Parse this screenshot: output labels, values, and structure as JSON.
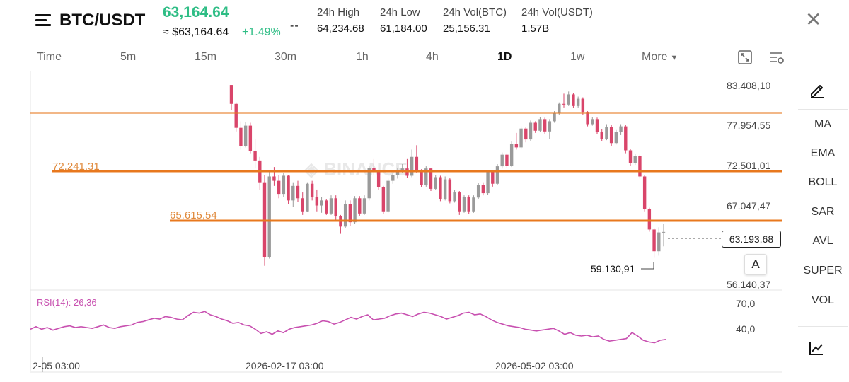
{
  "header": {
    "pair": "BTC/USDT",
    "last_price": "63,164.64",
    "approx_price": "≈ $63,164.64",
    "change_pct": "+1.49%",
    "dashes": "--",
    "stats": [
      {
        "label": "24h High",
        "value": "64,234.68"
      },
      {
        "label": "24h Low",
        "value": "61,184.00"
      },
      {
        "label": "24h Vol(BTC)",
        "value": "25,156.31"
      },
      {
        "label": "24h Vol(USDT)",
        "value": "1.57B"
      }
    ],
    "close_icon": "close-icon"
  },
  "timeframes": {
    "items": [
      "Time",
      "5m",
      "15m",
      "30m",
      "1h",
      "4h",
      "1D",
      "1w"
    ],
    "active": "1D",
    "more_label": "More"
  },
  "toolbar": {
    "expand_icon": "expand-chart-icon",
    "settings_icon": "chart-settings-icon"
  },
  "sidebar": {
    "draw_icon": "pencil-draw-icon",
    "indicators": [
      "MA",
      "EMA",
      "BOLL",
      "SAR",
      "AVL",
      "SUPER",
      "VOL"
    ],
    "depth_icon": "line-chart-icon"
  },
  "price_axis": [
    "83.408,10",
    "77.954,55",
    "72.501,01",
    "67.047,47",
    "56.140,37"
  ],
  "levels": {
    "upper": "72.241,31",
    "lower": "65.615,54"
  },
  "current_price": "63.193,68",
  "low_marker": "59.130,91",
  "auto_button": "A",
  "rsi": {
    "label": "RSI(14): 26,36",
    "axis": [
      "70,0",
      "40,0"
    ]
  },
  "dates": [
    "2-05 03:00",
    "2026-02-17 03:00",
    "2026-05-02 03:00"
  ],
  "colors": {
    "up": "#2ebd85",
    "down": "#d9456a",
    "level": "#e8781e",
    "rsi": "#c850b0",
    "neutral_candle": "#9a9a9a"
  },
  "chart_data": {
    "type": "candlestick",
    "price_range": [
      56140.37,
      83408.1
    ],
    "horizontal_levels": [
      80960,
      72241.31,
      65615.54
    ],
    "rsi_range": [
      40,
      70
    ],
    "candles": [
      [
        83400,
        83400,
        80000,
        80800
      ],
      [
        80800,
        81000,
        77000,
        77500
      ],
      [
        77500,
        78400,
        74500,
        75000
      ],
      [
        75000,
        78300,
        74800,
        77800
      ],
      [
        77800,
        78200,
        74000,
        74300
      ],
      [
        74300,
        76000,
        72000,
        73000
      ],
      [
        73000,
        73500,
        69000,
        70000
      ],
      [
        70000,
        71000,
        58500,
        59700
      ],
      [
        59700,
        71400,
        59500,
        70800
      ],
      [
        70800,
        72100,
        69500,
        70200
      ],
      [
        70200,
        71000,
        67800,
        68400
      ],
      [
        68400,
        71300,
        68000,
        70900
      ],
      [
        70900,
        71000,
        67000,
        67500
      ],
      [
        67500,
        70000,
        66600,
        69500
      ],
      [
        69500,
        70200,
        67300,
        67800
      ],
      [
        67800,
        68600,
        65500,
        66000
      ],
      [
        66000,
        70000,
        65900,
        69800
      ],
      [
        69800,
        70200,
        67500,
        68000
      ],
      [
        68000,
        69000,
        66000,
        66800
      ],
      [
        66800,
        68000,
        65800,
        67500
      ],
      [
        67500,
        67700,
        65500,
        65700
      ],
      [
        65700,
        68200,
        65500,
        67800
      ],
      [
        67800,
        68200,
        64800,
        65300
      ],
      [
        65300,
        65500,
        62900,
        63900
      ],
      [
        63900,
        67500,
        63700,
        67000
      ],
      [
        67000,
        67500,
        64000,
        64500
      ],
      [
        64500,
        68100,
        64300,
        67800
      ],
      [
        67800,
        68100,
        65400,
        65700
      ],
      [
        65700,
        68200,
        65500,
        67800
      ],
      [
        67800,
        72300,
        67500,
        72000
      ],
      [
        72000,
        73200,
        71000,
        71400
      ],
      [
        71400,
        71600,
        69000,
        69300
      ],
      [
        69300,
        69500,
        65600,
        66000
      ],
      [
        66000,
        70500,
        65800,
        70200
      ],
      [
        70200,
        71300,
        69800,
        71000
      ],
      [
        71000,
        72000,
        70500,
        71700
      ],
      [
        71700,
        72500,
        71300,
        71900
      ],
      [
        71900,
        73200,
        70600,
        70900
      ],
      [
        70900,
        74500,
        70700,
        73500
      ],
      [
        73500,
        75100,
        71300,
        71600
      ],
      [
        71600,
        71800,
        69300,
        69600
      ],
      [
        69600,
        72200,
        69400,
        71900
      ],
      [
        71900,
        72000,
        68800,
        69100
      ],
      [
        69100,
        71000,
        68900,
        70700
      ],
      [
        70700,
        70900,
        67400,
        67700
      ],
      [
        67700,
        70800,
        67500,
        70400
      ],
      [
        70400,
        70600,
        67100,
        67400
      ],
      [
        67400,
        68900,
        67200,
        68600
      ],
      [
        68600,
        68800,
        65500,
        66000
      ],
      [
        66000,
        68200,
        65800,
        68000
      ],
      [
        68000,
        68200,
        65600,
        66000
      ],
      [
        66000,
        68200,
        65800,
        67900
      ],
      [
        67900,
        69900,
        67700,
        69600
      ],
      [
        69600,
        70000,
        68200,
        68500
      ],
      [
        68500,
        71700,
        68300,
        71400
      ],
      [
        71400,
        71600,
        69400,
        69800
      ],
      [
        69800,
        72500,
        69600,
        72200
      ],
      [
        72200,
        74100,
        71900,
        73800
      ],
      [
        73800,
        74000,
        72000,
        72300
      ],
      [
        72300,
        75600,
        72100,
        75300
      ],
      [
        75300,
        76800,
        74500,
        74800
      ],
      [
        74800,
        77700,
        74600,
        77400
      ],
      [
        77400,
        77600,
        75500,
        75900
      ],
      [
        75900,
        78500,
        75700,
        78200
      ],
      [
        78200,
        78400,
        76800,
        77100
      ],
      [
        77100,
        79000,
        76900,
        78700
      ],
      [
        78700,
        78900,
        76700,
        77000
      ],
      [
        77000,
        78700,
        76000,
        78400
      ],
      [
        78400,
        79800,
        78200,
        79500
      ],
      [
        79500,
        81000,
        79300,
        80800
      ],
      [
        80800,
        82200,
        80300,
        80700
      ],
      [
        80700,
        82500,
        80500,
        82100
      ],
      [
        82100,
        82300,
        80200,
        80500
      ],
      [
        80500,
        81800,
        80300,
        81500
      ],
      [
        81500,
        81700,
        79300,
        79600
      ],
      [
        79600,
        79800,
        77700,
        78000
      ],
      [
        78000,
        79000,
        77800,
        78700
      ],
      [
        78700,
        78900,
        76600,
        76900
      ],
      [
        76900,
        77300,
        75700,
        76000
      ],
      [
        76000,
        78000,
        75800,
        77600
      ],
      [
        77600,
        77900,
        75000,
        75400
      ],
      [
        75400,
        77200,
        75200,
        76900
      ],
      [
        76900,
        78000,
        76500,
        77700
      ],
      [
        77700,
        77900,
        74000,
        74400
      ],
      [
        74400,
        74600,
        72300,
        72600
      ],
      [
        72600,
        73900,
        72400,
        73600
      ],
      [
        73600,
        73800,
        70500,
        70800
      ],
      [
        70800,
        71000,
        66000,
        66300
      ],
      [
        66300,
        66500,
        63200,
        63500
      ],
      [
        63500,
        63700,
        59600,
        60500
      ],
      [
        60500,
        63800,
        59900,
        63100
      ],
      [
        63100,
        64234.68,
        61184,
        63164.64
      ]
    ],
    "rsi_values": [
      38,
      41,
      38,
      40,
      37,
      39,
      41,
      42,
      40,
      41,
      40,
      39,
      41,
      43,
      40,
      39,
      41,
      42,
      43,
      46,
      47,
      49,
      51,
      50,
      53,
      52,
      50,
      49,
      54,
      58,
      57,
      59,
      55,
      53,
      50,
      48,
      45,
      46,
      43,
      42,
      38,
      33,
      35,
      32,
      36,
      34,
      38,
      40,
      41,
      42,
      43,
      45,
      48,
      47,
      44,
      46,
      49,
      52,
      50,
      53,
      55,
      49,
      50,
      51,
      54,
      56,
      57,
      55,
      53,
      56,
      58,
      57,
      55,
      53,
      50,
      52,
      54,
      57,
      58,
      55,
      56,
      53,
      49,
      46,
      44,
      42,
      41,
      40,
      38,
      37,
      36,
      37,
      38,
      39,
      36,
      32,
      34,
      31,
      30,
      31,
      29,
      30,
      26,
      24,
      25,
      26,
      27,
      34,
      30,
      25,
      23,
      22,
      25,
      26
    ],
    "x_labels": [
      "2-05 03:00",
      "2026-02-17 03:00",
      "2026-05-02 03:00"
    ],
    "price_ticks": [
      83408.1,
      77954.55,
      72501.01,
      67047.47,
      56140.37
    ]
  }
}
